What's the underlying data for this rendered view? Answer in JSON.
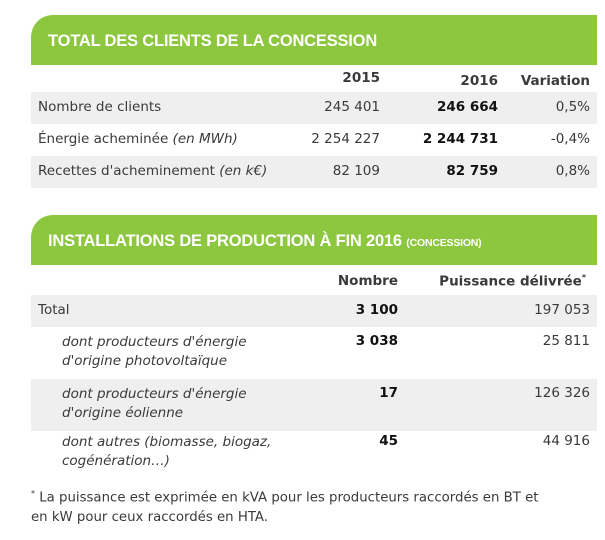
{
  "table1": {
    "title": "TOTAL DES CLIENTS DE LA CONCESSION",
    "headers": [
      "2015",
      "2016",
      "Variation"
    ],
    "rows": [
      {
        "label": "Nombre de clients",
        "label_note": "",
        "v2015": "245 401",
        "v2016": "246 664",
        "variation": "0,5%"
      },
      {
        "label": "Énergie acheminée ",
        "label_note": "(en MWh)",
        "v2015": "2 254 227",
        "v2016": "2 244 731",
        "variation": "-0,4%"
      },
      {
        "label": "Recettes d'acheminement ",
        "label_note": "(en k€)",
        "v2015": "82 109",
        "v2016": "82 759",
        "variation": "0,8%"
      }
    ]
  },
  "table2": {
    "title": "INSTALLATIONS DE PRODUCTION À FIN 2016",
    "title_suffix": "(CONCESSION)",
    "headers": [
      "Nombre",
      "Puissance délivrée"
    ],
    "header_mark": "*",
    "rows": [
      {
        "line1": "Total",
        "line2": "",
        "nombre": "3 100",
        "puissance": "197 053"
      },
      {
        "line1": "dont producteurs d'énergie",
        "line2": "d'origine photovoltaïque",
        "nombre": "3 038",
        "puissance": "25 811"
      },
      {
        "line1": "dont producteurs d'énergie",
        "line2": "d'origine éolienne",
        "nombre": "17",
        "puissance": "126 326"
      },
      {
        "line1": "dont autres (biomasse, biogaz,",
        "line2": "cogénération…)",
        "nombre": "45",
        "puissance": "44 916"
      }
    ]
  },
  "footnote": {
    "mark": "*",
    "line1": " La puissance est exprimée en kVA pour les producteurs raccordés en BT et",
    "line2": "en kW pour ceux raccordés en HTA."
  },
  "colors": {
    "accent": "#8dc63f",
    "row_shade": "#efefef"
  }
}
